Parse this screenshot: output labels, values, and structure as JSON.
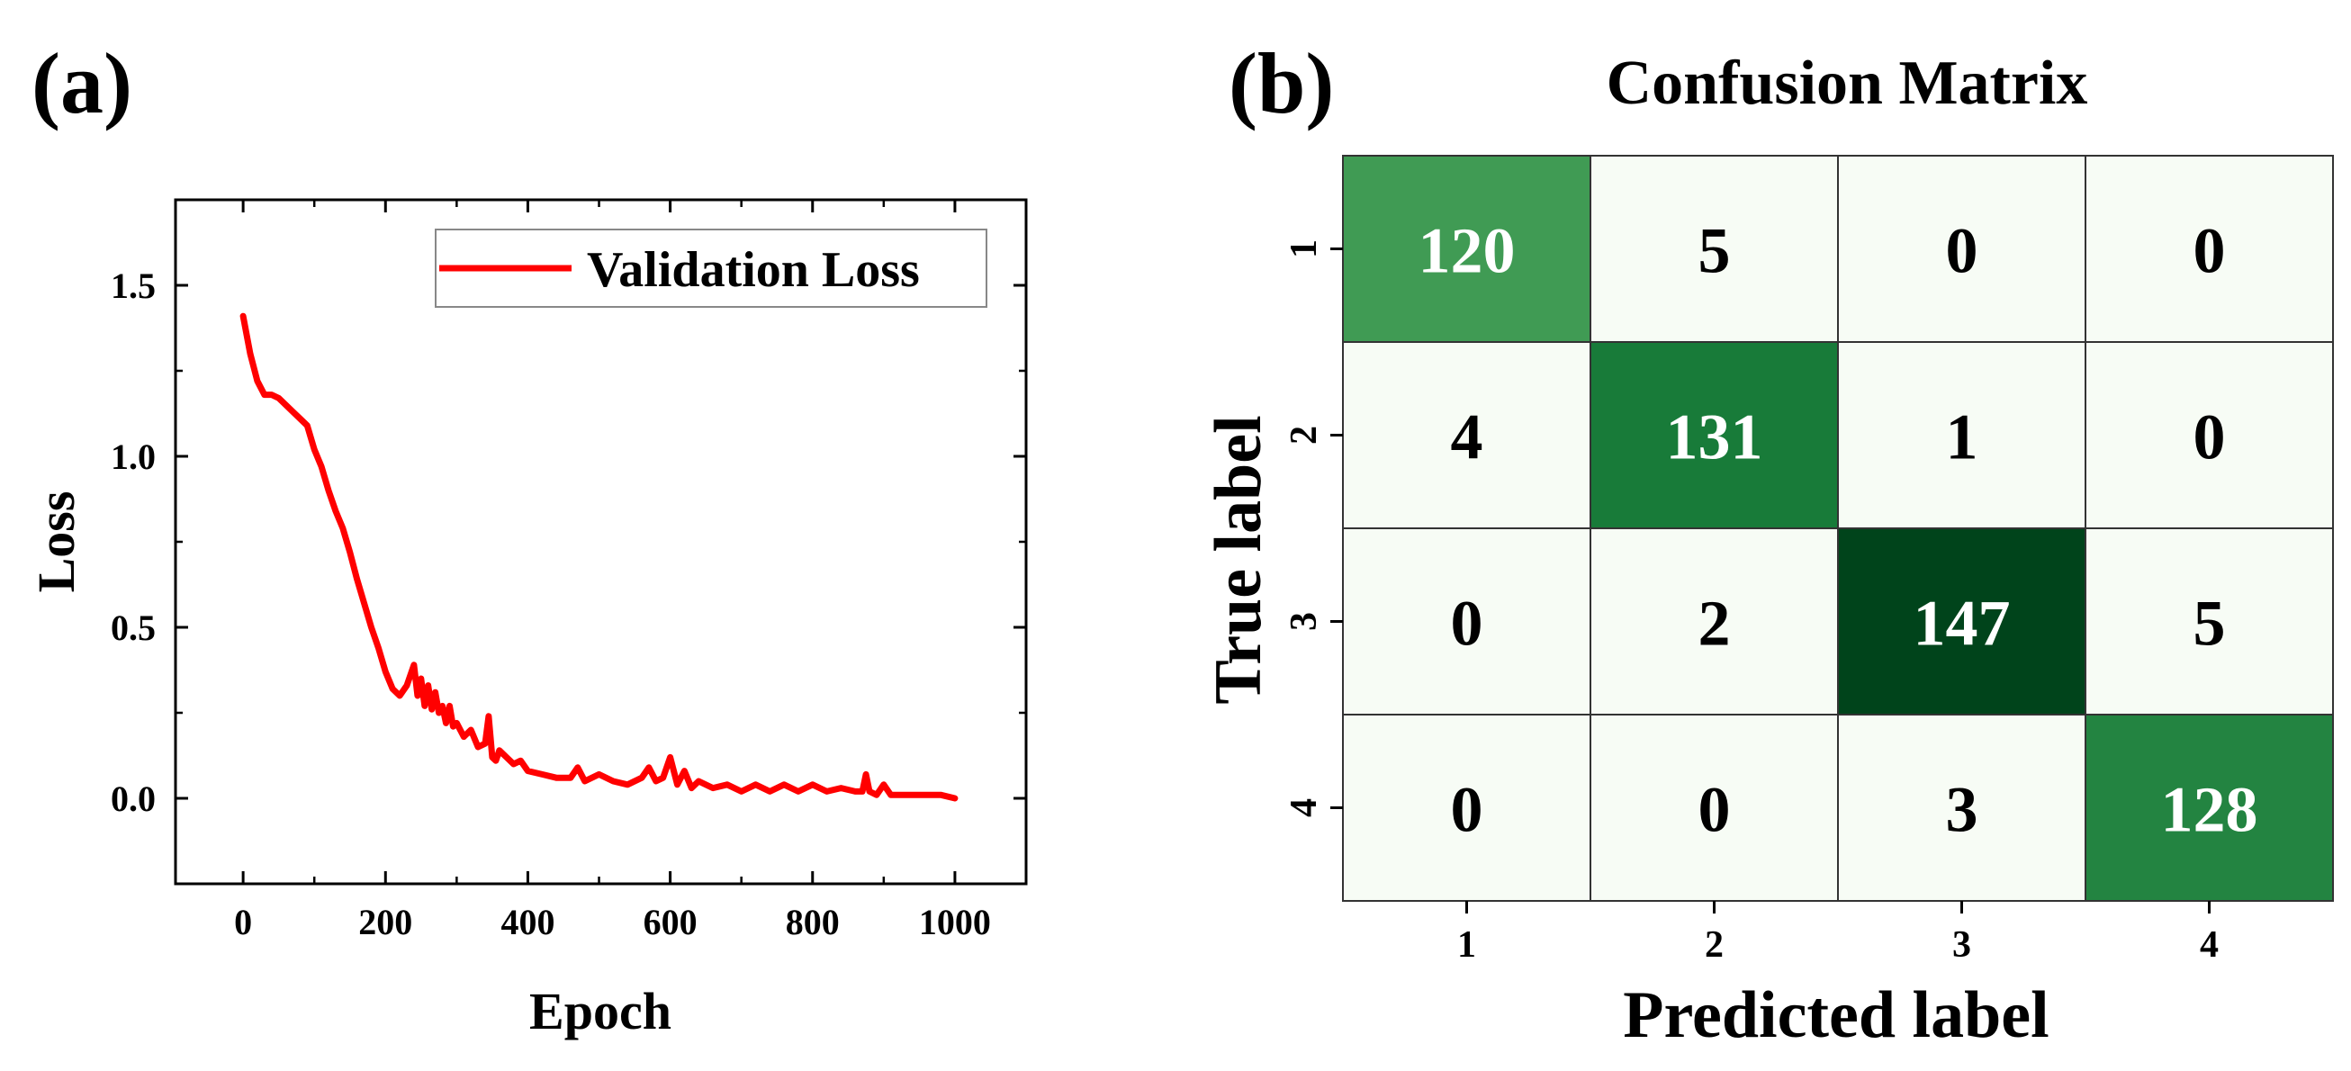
{
  "panels": {
    "a_label": "(a)",
    "b_label": "(b)"
  },
  "chart_data": [
    {
      "type": "line",
      "panel": "(a)",
      "title": "",
      "xlabel": "Epoch",
      "ylabel": "Loss",
      "xlim": [
        -95,
        1100
      ],
      "ylim": [
        -0.25,
        1.75
      ],
      "xticks": [
        0,
        200,
        400,
        600,
        800,
        1000
      ],
      "xtick_labels": [
        "0",
        "200",
        "400",
        "600",
        "800",
        "1000"
      ],
      "yticks": [
        0.0,
        0.5,
        1.0,
        1.5
      ],
      "ytick_labels": [
        "0.0",
        "0.5",
        "1.0",
        "1.5"
      ],
      "legend": {
        "position": "top-right",
        "entries": [
          "Validation Loss"
        ]
      },
      "grid": false,
      "series": [
        {
          "name": "Validation Loss",
          "color": "#ff0000",
          "x": [
            0,
            10,
            20,
            30,
            40,
            50,
            60,
            70,
            80,
            90,
            100,
            110,
            120,
            130,
            140,
            150,
            160,
            170,
            180,
            190,
            200,
            210,
            220,
            230,
            240,
            245,
            250,
            255,
            260,
            265,
            270,
            275,
            280,
            285,
            290,
            295,
            300,
            310,
            320,
            330,
            340,
            345,
            350,
            355,
            360,
            370,
            380,
            390,
            400,
            420,
            440,
            460,
            470,
            480,
            500,
            520,
            540,
            560,
            570,
            580,
            590,
            600,
            610,
            620,
            630,
            640,
            660,
            680,
            700,
            720,
            740,
            760,
            780,
            800,
            820,
            840,
            860,
            870,
            875,
            880,
            890,
            900,
            910,
            920,
            940,
            960,
            980,
            1000
          ],
          "y": [
            1.41,
            1.3,
            1.22,
            1.18,
            1.18,
            1.17,
            1.15,
            1.13,
            1.11,
            1.09,
            1.02,
            0.97,
            0.9,
            0.84,
            0.79,
            0.72,
            0.64,
            0.57,
            0.5,
            0.44,
            0.37,
            0.32,
            0.3,
            0.33,
            0.39,
            0.3,
            0.35,
            0.27,
            0.33,
            0.26,
            0.31,
            0.25,
            0.27,
            0.22,
            0.27,
            0.21,
            0.22,
            0.18,
            0.2,
            0.15,
            0.16,
            0.24,
            0.12,
            0.11,
            0.14,
            0.12,
            0.1,
            0.11,
            0.08,
            0.07,
            0.06,
            0.06,
            0.09,
            0.05,
            0.07,
            0.05,
            0.04,
            0.06,
            0.09,
            0.05,
            0.06,
            0.12,
            0.04,
            0.08,
            0.03,
            0.05,
            0.03,
            0.04,
            0.02,
            0.04,
            0.02,
            0.04,
            0.02,
            0.04,
            0.02,
            0.03,
            0.02,
            0.02,
            0.07,
            0.02,
            0.01,
            0.04,
            0.01,
            0.01,
            0.01,
            0.01,
            0.01,
            0.0
          ]
        }
      ]
    },
    {
      "type": "heatmap",
      "panel": "(b)",
      "title": "Confusion Matrix",
      "xlabel": "Predicted label",
      "ylabel": "True label",
      "x_categories": [
        "1",
        "2",
        "3",
        "4"
      ],
      "y_categories": [
        "1",
        "2",
        "3",
        "4"
      ],
      "values": [
        [
          120,
          5,
          0,
          0
        ],
        [
          4,
          131,
          1,
          0
        ],
        [
          0,
          2,
          147,
          5
        ],
        [
          0,
          0,
          3,
          128
        ]
      ],
      "colormap": "Greens",
      "color_low": "#f7fcf5",
      "color_high": "#00441b"
    }
  ]
}
